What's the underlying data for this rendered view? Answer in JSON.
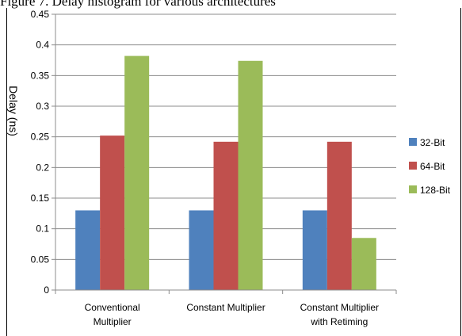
{
  "caption": "Figure 7. Delay histogram for various architectures",
  "chart_data": {
    "type": "bar",
    "title": "",
    "xlabel": "",
    "ylabel": "Delay (ns)",
    "ylim": [
      0,
      0.45
    ],
    "yticks": [
      "0",
      "0.05",
      "0.1",
      "0.15",
      "0.2",
      "0.25",
      "0.3",
      "0.35",
      "0.4",
      "0.45"
    ],
    "grid": true,
    "legend_position": "right",
    "categories": [
      [
        "Conventional",
        "Multiplier"
      ],
      [
        "Constant Multiplier"
      ],
      [
        "Constant Multiplier",
        "with Retiming"
      ]
    ],
    "series": [
      {
        "name": "32-Bit",
        "color": "#4f81bd",
        "values": [
          0.13,
          0.13,
          0.13
        ]
      },
      {
        "name": "64-Bit",
        "color": "#c0504d",
        "values": [
          0.252,
          0.242,
          0.242
        ]
      },
      {
        "name": "128-Bit",
        "color": "#9bbb59",
        "values": [
          0.382,
          0.374,
          0.085
        ]
      }
    ]
  }
}
